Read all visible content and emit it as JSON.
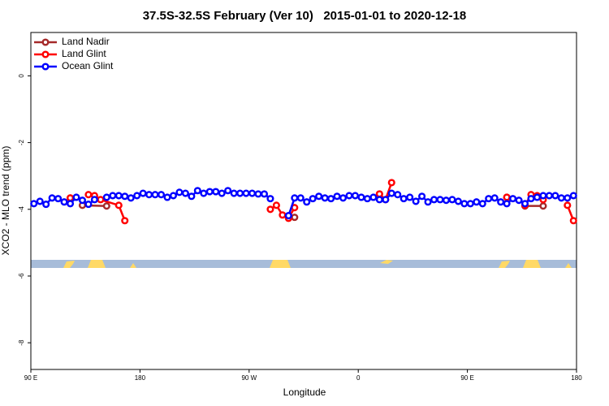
{
  "chart_data": {
    "type": "line",
    "title": "37.5S-32.5S February (Ver 10)   2015-01-01 to 2020-12-18",
    "xlabel": "Longitude",
    "ylabel": "XCO2 - MLO trend (ppm)",
    "xlim": [
      90,
      540
    ],
    "xticks": [
      {
        "value": 90,
        "label": "90 E"
      },
      180,
      {
        "value": 270,
        "label": "90 W"
      },
      {
        "value": 360,
        "label": "0"
      },
      {
        "value": 450,
        "label": "90 E"
      },
      {
        "value": 540,
        "label": "180"
      }
    ],
    "ylim": [
      -8.8,
      1.3
    ],
    "yticks": [
      0,
      -2,
      -4,
      -6,
      -8
    ],
    "grid": false,
    "legend": "topleft",
    "series": [
      {
        "name": "Land Nadir",
        "color": "#a52a2a",
        "x": [
          122.5,
          127.5,
          132.5,
          152.5,
          157.5,
          307.5,
          312.5,
          377.5,
          382.5,
          482.5,
          487.5,
          497.5,
          512.5
        ],
        "values": [
          -3.66,
          null,
          -3.88,
          -3.9,
          null,
          -4.24,
          null,
          -3.54,
          null,
          -3.64,
          null,
          -3.9,
          -3.9
        ]
      },
      {
        "name": "Land Glint",
        "color": "#ff0000",
        "x": [
          122.5,
          127.5,
          137.5,
          142.5,
          147.5,
          162.5,
          167.5,
          172.5,
          287.5,
          292.5,
          297.5,
          302.5,
          307.5,
          312.5,
          377.5,
          382.5,
          387.5,
          392.5,
          482.5,
          487.5,
          497.5,
          502.5,
          507.5,
          512.5,
          517.5,
          532.5,
          537.5
        ],
        "values": [
          -3.66,
          null,
          -3.56,
          -3.59,
          -3.71,
          -3.88,
          -4.34,
          null,
          -4.0,
          -3.88,
          -4.17,
          -4.27,
          -3.95,
          null,
          -3.54,
          -3.71,
          -3.2,
          null,
          -3.64,
          null,
          -3.88,
          -3.56,
          -3.59,
          -3.71,
          null,
          -3.88,
          -4.34
        ]
      },
      {
        "name": "Ocean Glint",
        "color": "#0000ff",
        "x": [
          92.5,
          97.5,
          102.5,
          107.5,
          112.5,
          117.5,
          122.5,
          127.5,
          132.5,
          137.5,
          142.5,
          147.5,
          152.5,
          157.5,
          162.5,
          167.5,
          172.5,
          177.5,
          182.5,
          187.5,
          192.5,
          197.5,
          202.5,
          207.5,
          212.5,
          217.5,
          222.5,
          227.5,
          232.5,
          237.5,
          242.5,
          247.5,
          252.5,
          257.5,
          262.5,
          267.5,
          272.5,
          277.5,
          282.5,
          287.5,
          292.5,
          297.5,
          302.5,
          307.5,
          312.5,
          317.5,
          322.5,
          327.5,
          332.5,
          337.5,
          342.5,
          347.5,
          352.5,
          357.5,
          362.5,
          367.5,
          372.5,
          377.5,
          382.5,
          387.5,
          392.5,
          397.5,
          402.5,
          407.5,
          412.5,
          417.5,
          422.5,
          427.5,
          432.5,
          437.5,
          442.5,
          447.5,
          452.5,
          457.5,
          462.5,
          467.5,
          472.5,
          477.5,
          482.5,
          487.5,
          492.5,
          497.5,
          502.5,
          507.5,
          512.5,
          517.5,
          522.5,
          527.5,
          532.5,
          537.5
        ],
        "values": [
          -3.83,
          -3.76,
          -3.85,
          -3.66,
          -3.68,
          -3.78,
          -3.83,
          -3.64,
          -3.73,
          -3.85,
          -3.71,
          null,
          -3.64,
          -3.59,
          -3.59,
          -3.61,
          -3.66,
          -3.59,
          -3.52,
          -3.56,
          -3.56,
          -3.56,
          -3.64,
          -3.59,
          -3.49,
          -3.52,
          -3.61,
          -3.44,
          -3.52,
          -3.47,
          -3.47,
          -3.52,
          -3.44,
          -3.52,
          -3.52,
          -3.52,
          -3.52,
          -3.54,
          -3.54,
          -3.68,
          null,
          null,
          -4.19,
          -3.66,
          -3.66,
          -3.78,
          -3.68,
          -3.61,
          -3.66,
          -3.68,
          -3.61,
          -3.66,
          -3.59,
          -3.59,
          -3.64,
          -3.68,
          -3.64,
          -3.71,
          -3.71,
          -3.52,
          -3.56,
          -3.68,
          -3.64,
          -3.76,
          -3.61,
          -3.78,
          -3.71,
          -3.71,
          -3.73,
          -3.71,
          -3.76,
          -3.83,
          -3.83,
          -3.78,
          -3.83,
          -3.68,
          -3.66,
          -3.78,
          -3.83,
          -3.68,
          -3.73,
          -3.83,
          -3.68,
          -3.64,
          -3.59,
          -3.59,
          -3.59,
          -3.66,
          -3.66,
          -3.59
        ]
      }
    ]
  }
}
